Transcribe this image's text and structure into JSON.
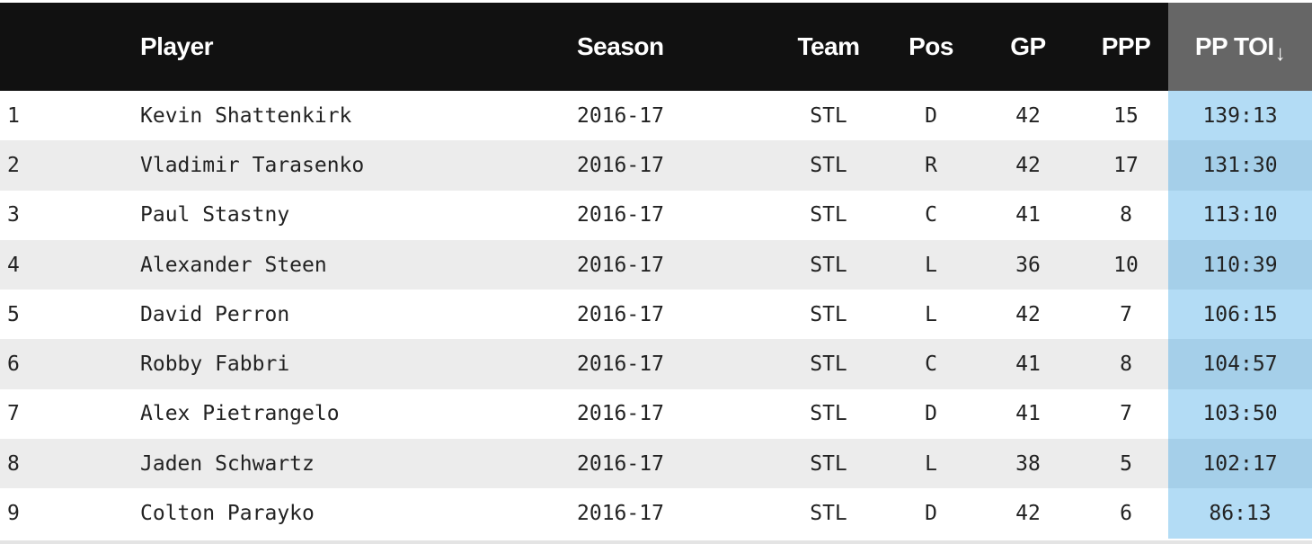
{
  "table": {
    "columns": [
      {
        "key": "rank",
        "label": ""
      },
      {
        "key": "player",
        "label": "Player"
      },
      {
        "key": "season",
        "label": "Season"
      },
      {
        "key": "team",
        "label": "Team"
      },
      {
        "key": "pos",
        "label": "Pos"
      },
      {
        "key": "gp",
        "label": "GP"
      },
      {
        "key": "ppp",
        "label": "PPP"
      },
      {
        "key": "pptoi",
        "label": "PP TOI",
        "sort_indicator": "↓"
      }
    ],
    "sorted_column": "pptoi",
    "sort_direction": "descending",
    "rows": [
      {
        "rank": "1",
        "player": "Kevin Shattenkirk",
        "season": "2016-17",
        "team": "STL",
        "pos": "D",
        "gp": "42",
        "ppp": "15",
        "pptoi": "139:13"
      },
      {
        "rank": "2",
        "player": "Vladimir Tarasenko",
        "season": "2016-17",
        "team": "STL",
        "pos": "R",
        "gp": "42",
        "ppp": "17",
        "pptoi": "131:30"
      },
      {
        "rank": "3",
        "player": "Paul Stastny",
        "season": "2016-17",
        "team": "STL",
        "pos": "C",
        "gp": "41",
        "ppp": "8",
        "pptoi": "113:10"
      },
      {
        "rank": "4",
        "player": "Alexander Steen",
        "season": "2016-17",
        "team": "STL",
        "pos": "L",
        "gp": "36",
        "ppp": "10",
        "pptoi": "110:39"
      },
      {
        "rank": "5",
        "player": "David Perron",
        "season": "2016-17",
        "team": "STL",
        "pos": "L",
        "gp": "42",
        "ppp": "7",
        "pptoi": "106:15"
      },
      {
        "rank": "6",
        "player": "Robby Fabbri",
        "season": "2016-17",
        "team": "STL",
        "pos": "C",
        "gp": "41",
        "ppp": "8",
        "pptoi": "104:57"
      },
      {
        "rank": "7",
        "player": "Alex Pietrangelo",
        "season": "2016-17",
        "team": "STL",
        "pos": "D",
        "gp": "41",
        "ppp": "7",
        "pptoi": "103:50"
      },
      {
        "rank": "8",
        "player": "Jaden Schwartz",
        "season": "2016-17",
        "team": "STL",
        "pos": "L",
        "gp": "38",
        "ppp": "5",
        "pptoi": "102:17"
      },
      {
        "rank": "9",
        "player": "Colton Parayko",
        "season": "2016-17",
        "team": "STL",
        "pos": "D",
        "gp": "42",
        "ppp": "6",
        "pptoi": "86:13"
      }
    ]
  },
  "colors": {
    "header_bg": "#111111",
    "sorted_header_bg": "#666666",
    "sorted_cell_bg": "#b3dcf5",
    "sorted_cell_bg_alt": "#a5cfe9",
    "row_alt_bg": "#ececec"
  }
}
